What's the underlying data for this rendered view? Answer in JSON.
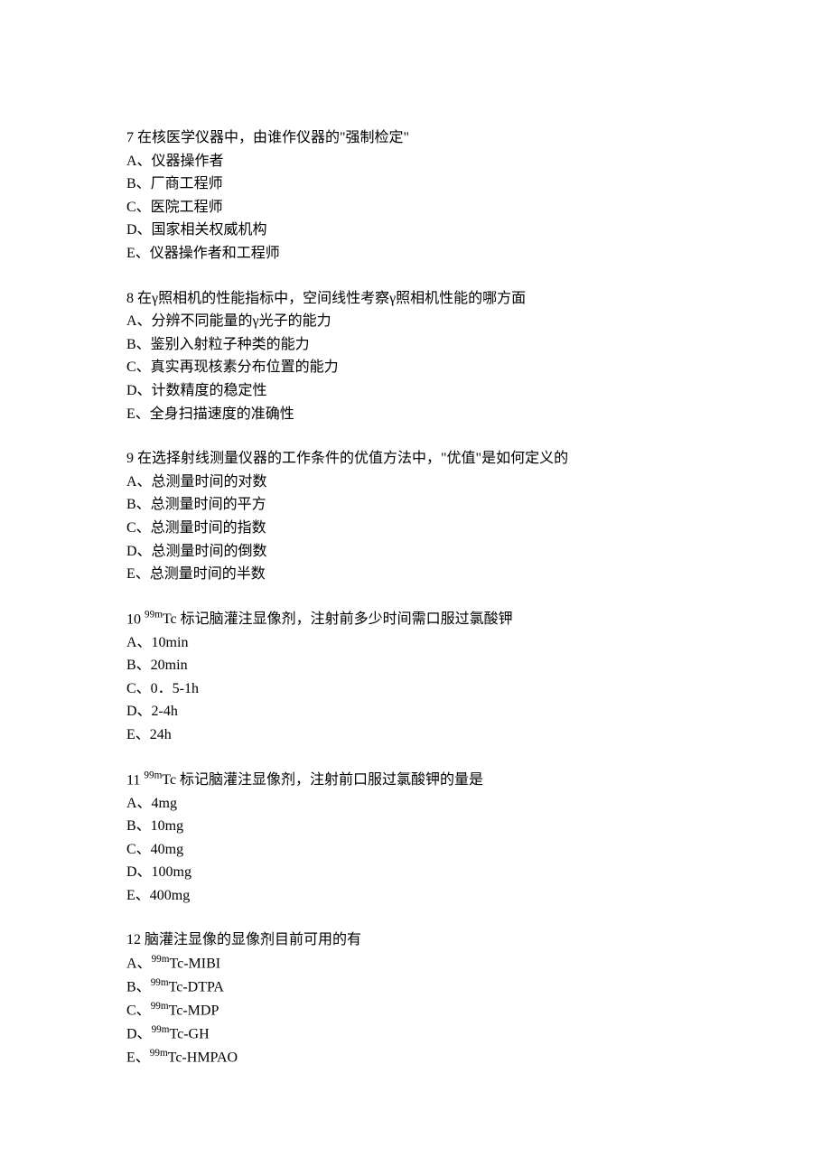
{
  "questions": [
    {
      "number": "7",
      "text": " 在核医学仪器中，由谁作仪器的\"强制检定\"",
      "options": [
        "A、仪器操作者",
        "B、厂商工程师",
        "C、医院工程师",
        "D、国家相关权威机构",
        "E、仪器操作者和工程师"
      ]
    },
    {
      "number": "8",
      "text": " 在γ照相机的性能指标中，空间线性考察γ照相机性能的哪方面",
      "options": [
        "A、分辨不同能量的γ光子的能力",
        "B、鉴别入射粒子种类的能力",
        "C、真实再现核素分布位置的能力",
        "D、计数精度的稳定性",
        "E、全身扫描速度的准确性"
      ]
    },
    {
      "number": "9",
      "text": " 在选择射线测量仪器的工作条件的优值方法中，\"优值\"是如何定义的",
      "options": [
        "A、总测量时间的对数",
        "B、总测量时间的平方",
        "C、总测量时间的指数",
        "D、总测量时间的倒数",
        "E、总测量时间的半数"
      ]
    },
    {
      "number": "10",
      "text_html": " <sup>99m</sup>Tc 标记脑灌注显像剂，注射前多少时间需口服过氯酸钾",
      "options": [
        "A、10min",
        "B、20min",
        "C、0．5-1h",
        "D、2-4h",
        "E、24h"
      ]
    },
    {
      "number": "11",
      "text_html": " <sup>99m</sup>Tc 标记脑灌注显像剂，注射前口服过氯酸钾的量是",
      "options": [
        "A、4mg",
        "B、10mg",
        "C、40mg",
        "D、100mg",
        "E、400mg"
      ]
    },
    {
      "number": "12",
      "text": " 脑灌注显像的显像剂目前可用的有",
      "options_html": [
        "A、<sup>99m</sup>Tc-MIBI",
        "B、<sup>99m</sup>Tc-DTPA",
        "C、<sup>99m</sup>Tc-MDP",
        "D、<sup>99m</sup>Tc-GH",
        "E、<sup>99m</sup>Tc-HMPAO"
      ]
    }
  ]
}
